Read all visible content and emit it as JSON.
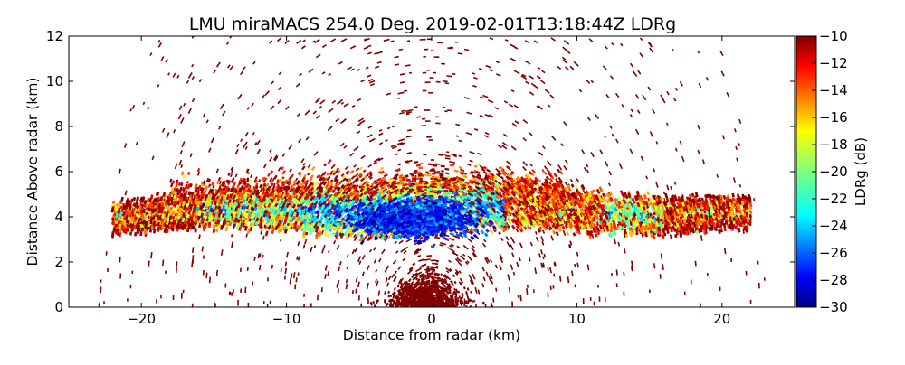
{
  "chart_data": {
    "type": "heatmap",
    "title": "LMU miraMACS 254.0 Deg. 2019-02-01T13:18:44Z  LDRg",
    "xlabel": "Distance from radar (km)",
    "ylabel": "Distance Above radar  (km)",
    "xlim": [
      -25,
      25
    ],
    "ylim": [
      0,
      12
    ],
    "x_ticks": [
      -20,
      -10,
      0,
      10,
      20
    ],
    "x_tick_labels": [
      "−20",
      "−10",
      "0",
      "10",
      "20"
    ],
    "y_ticks": [
      0,
      2,
      4,
      6,
      8,
      10,
      12
    ],
    "y_tick_labels": [
      "0",
      "2",
      "4",
      "6",
      "8",
      "10",
      "12"
    ],
    "grid": false,
    "colorbar": {
      "label": "LDRg (dB)",
      "range": [
        -30,
        -10
      ],
      "ticks": [
        -10,
        -12,
        -14,
        -16,
        -18,
        -20,
        -22,
        -24,
        -26,
        -28,
        -30
      ],
      "tick_labels": [
        "−10",
        "−12",
        "−14",
        "−16",
        "−18",
        "−20",
        "−22",
        "−24",
        "−26",
        "−28",
        "−30"
      ],
      "colormap": "jet",
      "colors": [
        "#00007f",
        "#0000ff",
        "#007fff",
        "#00ffff",
        "#7fff7f",
        "#ffff00",
        "#ff7f00",
        "#ff0000",
        "#7f0000"
      ]
    },
    "features": [
      {
        "name": "main cloud layer",
        "x_range": [
          -22,
          22
        ],
        "alt_km": [
          3.2,
          6.0
        ],
        "ldr_db": -18
      },
      {
        "name": "low-LDR core",
        "x_range": [
          -4,
          2
        ],
        "alt_km": [
          3.3,
          4.6
        ],
        "ldr_db": -27
      },
      {
        "name": "near-surface clutter",
        "x_range": [
          -3,
          2
        ],
        "alt_km": [
          0,
          2
        ],
        "ldr_db": -10
      },
      {
        "name": "scattered noise",
        "x_range": [
          -22,
          22
        ],
        "alt_km": [
          0,
          12
        ],
        "ldr_db": -10
      }
    ]
  }
}
